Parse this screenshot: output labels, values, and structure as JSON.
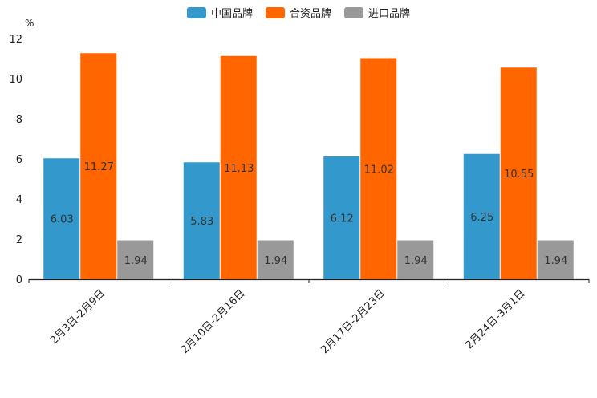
{
  "chart_data": {
    "type": "bar",
    "ylabel": "%",
    "ylim": [
      0,
      12
    ],
    "yticks": [
      0,
      2,
      4,
      6,
      8,
      10,
      12
    ],
    "categories": [
      "2月3日-2月9日",
      "2月10日-2月16日",
      "2月17日-2月23日",
      "2月24日-3月1日"
    ],
    "series": [
      {
        "name": "中国品牌",
        "color": "#3399cc",
        "values": [
          6.03,
          5.83,
          6.12,
          6.25
        ]
      },
      {
        "name": "合资品牌",
        "color": "#ff6600",
        "values": [
          11.27,
          11.13,
          11.02,
          10.55
        ]
      },
      {
        "name": "进口品牌",
        "color": "#999999",
        "values": [
          1.94,
          1.94,
          1.94,
          1.94
        ]
      }
    ],
    "legend_position": "top-center"
  }
}
